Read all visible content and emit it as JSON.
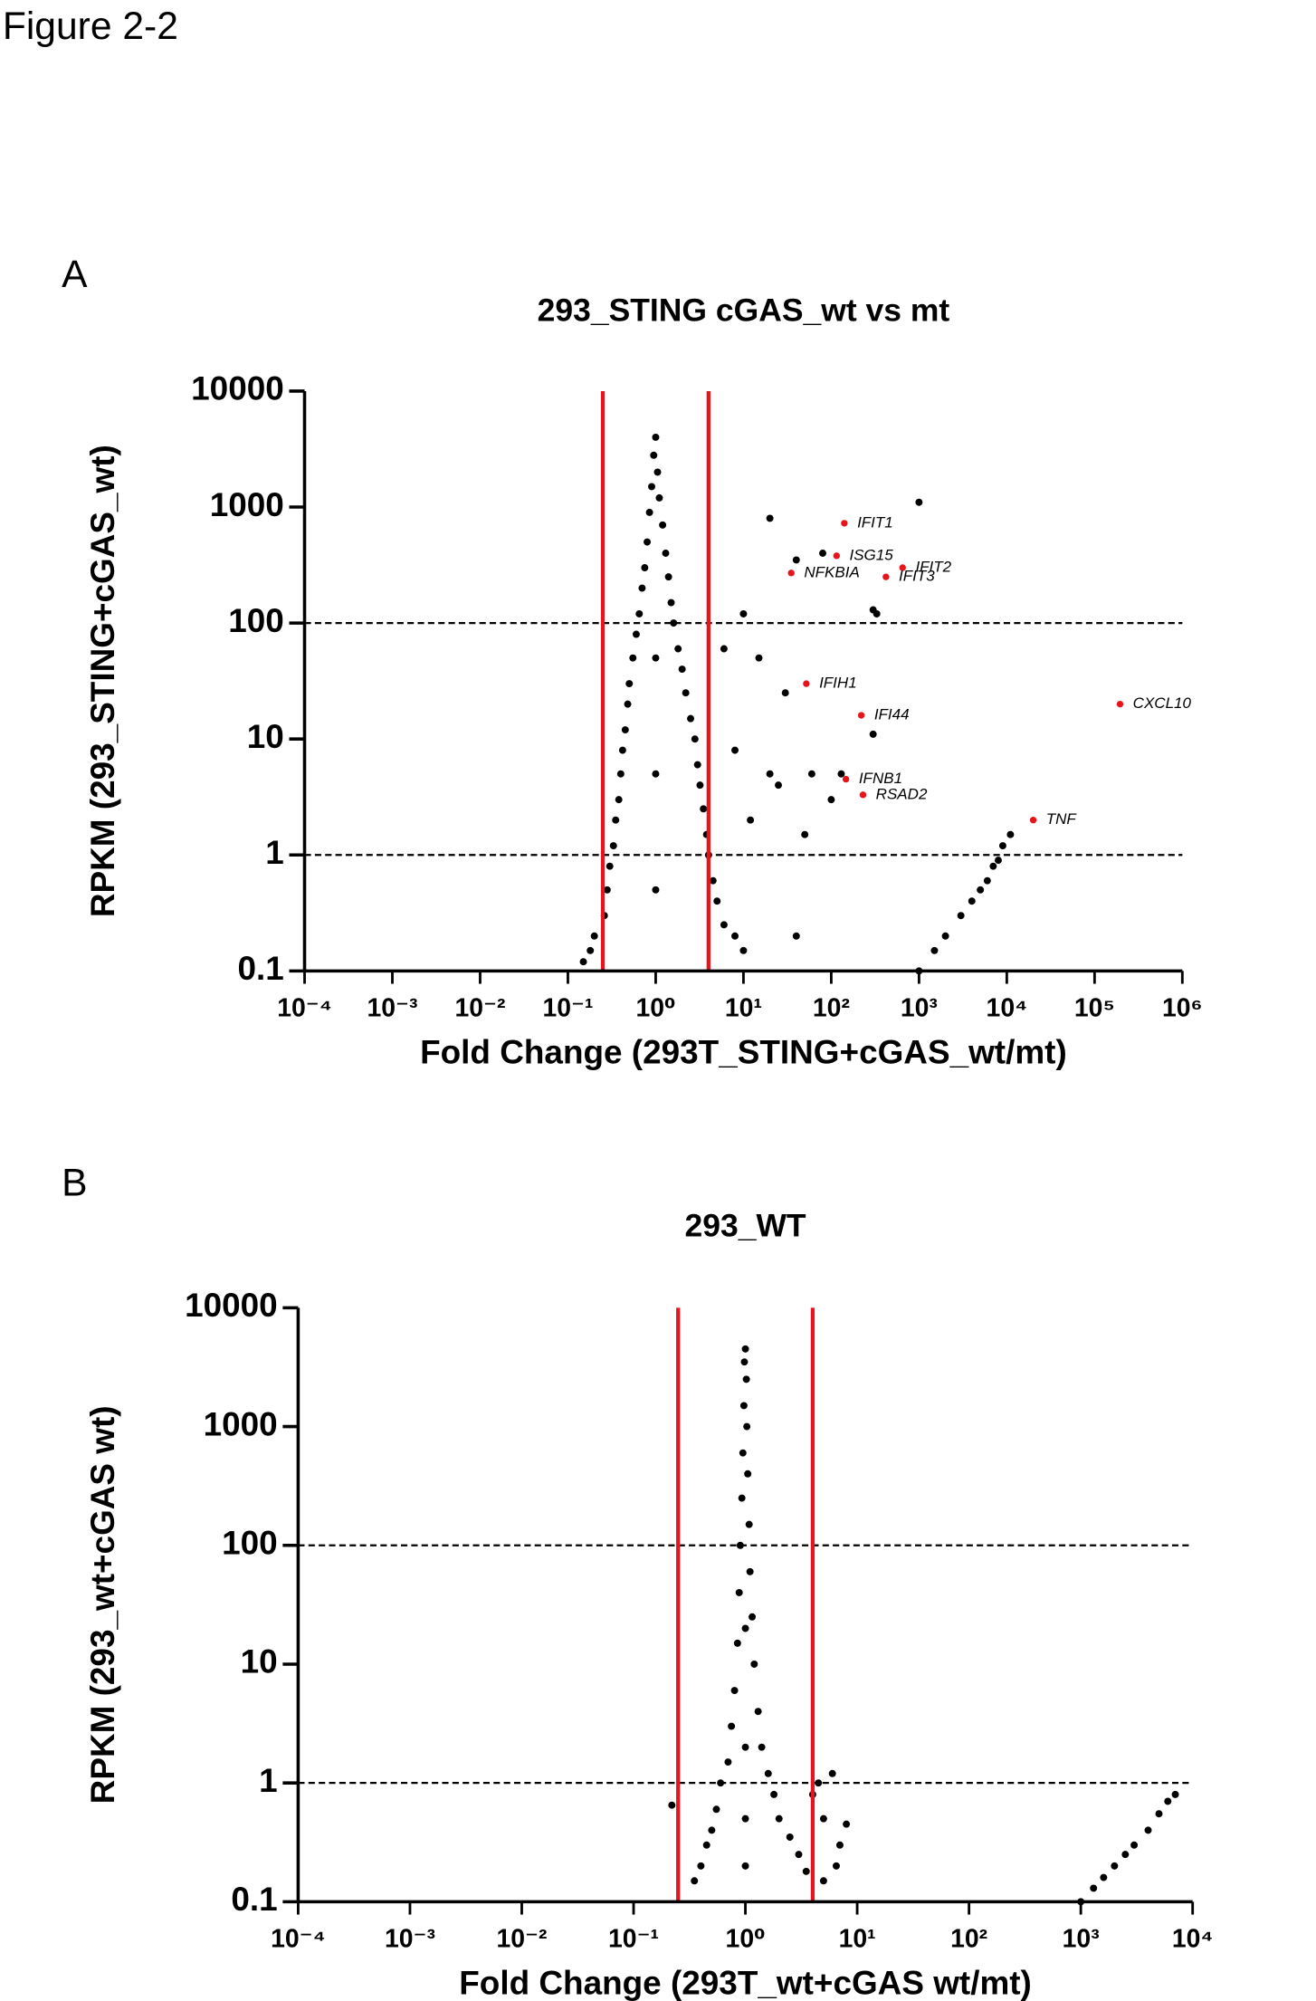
{
  "figure_title": "Figure 2-2",
  "chart_data": [
    {
      "panel": "A",
      "type": "scatter",
      "title": "293_STING cGAS_wt vs mt",
      "x_label": "Fold Change (293T_STING+cGAS_wt/mt)",
      "y_label": "RPKM (293_STING+cGAS_wt)",
      "log_x": true,
      "log_y": true,
      "xlim": [
        0.0001,
        1000000
      ],
      "ylim": [
        0.1,
        10000
      ],
      "xticks": [
        {
          "value": 0.0001,
          "label": "10⁻⁴"
        },
        {
          "value": 0.001,
          "label": "10⁻³"
        },
        {
          "value": 0.01,
          "label": "10⁻²"
        },
        {
          "value": 0.1,
          "label": "10⁻¹"
        },
        {
          "value": 1,
          "label": "10⁰"
        },
        {
          "value": 10,
          "label": "10¹"
        },
        {
          "value": 100,
          "label": "10²"
        },
        {
          "value": 1000,
          "label": "10³"
        },
        {
          "value": 10000,
          "label": "10⁴"
        },
        {
          "value": 100000,
          "label": "10⁵"
        },
        {
          "value": 1000000,
          "label": "10⁶"
        }
      ],
      "yticks": [
        0.1,
        1,
        10,
        100,
        1000,
        10000
      ],
      "vlines": {
        "values": [
          0.25,
          4
        ],
        "color": "#e8141b"
      },
      "hlines": {
        "values": [
          1,
          100
        ],
        "color": "#000000"
      },
      "series": [
        {
          "color": "#000000",
          "x": [
            1,
            0.95,
            1.05,
            0.9,
            1.1,
            0.85,
            1.2,
            0.8,
            1.3,
            0.75,
            1.4,
            0.7,
            1.5,
            0.65,
            1.6,
            0.6,
            1.8,
            0.55,
            2,
            0.5,
            2.2,
            0.48,
            2.5,
            0.45,
            2.8,
            0.42,
            3,
            0.4,
            3.2,
            0.38,
            3.5,
            0.35,
            3.8,
            0.33,
            4,
            0.3,
            4.5,
            0.28,
            5,
            0.26,
            6,
            0.2,
            8,
            0.18,
            10,
            0.15,
            1,
            1,
            1,
            1000,
            20,
            80,
            40,
            300,
            330,
            10,
            6,
            15,
            30,
            8,
            20,
            25,
            60,
            100,
            12,
            50,
            40,
            300,
            130,
            1000,
            1500,
            2000,
            3000,
            4000,
            5000,
            6000,
            7000,
            8000,
            9000,
            11000
          ],
          "values": [
            4000,
            2800,
            2000,
            1500,
            1200,
            900,
            700,
            500,
            400,
            300,
            250,
            200,
            150,
            120,
            100,
            80,
            60,
            50,
            40,
            30,
            25,
            20,
            15,
            12,
            10,
            8,
            6,
            5,
            4,
            3,
            2.5,
            2,
            1.5,
            1.2,
            1,
            0.8,
            0.6,
            0.5,
            0.4,
            0.3,
            0.25,
            0.2,
            0.2,
            0.15,
            0.15,
            0.12,
            0.5,
            50,
            5,
            1100,
            800,
            400,
            350,
            130,
            120,
            120,
            60,
            50,
            25,
            8,
            5,
            4,
            5,
            3,
            2,
            1.5,
            0.2,
            11,
            5,
            0.1,
            0.15,
            0.2,
            0.3,
            0.4,
            0.5,
            0.6,
            0.8,
            0.9,
            1.2,
            1.5
          ]
        },
        {
          "color": "#e8141b",
          "labels": [
            "IFIT1",
            "ISG15",
            "IFIT2",
            "NFKBIA",
            "IFIT3",
            "IFIH1",
            "IFI44",
            "CXCL10",
            "IFNB1",
            "RSAD2",
            "TNF"
          ],
          "x": [
            141,
            115,
            650,
            35,
            420,
            52,
            220,
            195000,
            147,
            230,
            20000
          ],
          "values": [
            725,
            380,
            300,
            270,
            250,
            30,
            16,
            20,
            4.5,
            3.3,
            2
          ]
        }
      ]
    },
    {
      "panel": "B",
      "type": "scatter",
      "title": "293_WT",
      "x_label": "Fold Change (293T_wt+cGAS wt/mt)",
      "y_label": "RPKM (293_wt+cGAS wt)",
      "log_x": true,
      "log_y": true,
      "xlim": [
        0.0001,
        10000
      ],
      "ylim": [
        0.1,
        10000
      ],
      "xticks": [
        {
          "value": 0.0001,
          "label": "10⁻⁴"
        },
        {
          "value": 0.001,
          "label": "10⁻³"
        },
        {
          "value": 0.01,
          "label": "10⁻²"
        },
        {
          "value": 0.1,
          "label": "10⁻¹"
        },
        {
          "value": 1,
          "label": "10⁰"
        },
        {
          "value": 10,
          "label": "10¹"
        },
        {
          "value": 100,
          "label": "10²"
        },
        {
          "value": 1000,
          "label": "10³"
        },
        {
          "value": 10000,
          "label": "10⁴"
        }
      ],
      "yticks": [
        0.1,
        1,
        10,
        100,
        1000,
        10000
      ],
      "vlines": {
        "values": [
          0.25,
          4
        ],
        "color": "#e8141b"
      },
      "hlines": {
        "values": [
          1,
          100
        ],
        "color": "#000000"
      },
      "series": [
        {
          "color": "#000000",
          "x": [
            1,
            0.98,
            1.02,
            0.97,
            1.03,
            0.95,
            1.05,
            0.93,
            1.08,
            0.9,
            1.1,
            0.88,
            1.15,
            0.85,
            1.2,
            0.8,
            1.3,
            0.75,
            1.4,
            0.7,
            1.6,
            0.6,
            1.8,
            0.55,
            2,
            0.5,
            2.5,
            0.45,
            3,
            0.4,
            3.5,
            0.35,
            1,
            1,
            1,
            1,
            0.22,
            4,
            5,
            6,
            7,
            8,
            5,
            6.5,
            4.5,
            1000,
            1300,
            1600,
            2000,
            2500,
            3000,
            4000,
            5000,
            6000,
            7000
          ],
          "values": [
            4500,
            3500,
            2500,
            1500,
            1000,
            600,
            400,
            250,
            150,
            100,
            60,
            40,
            25,
            15,
            10,
            6,
            4,
            3,
            2,
            1.5,
            1.2,
            1,
            0.8,
            0.6,
            0.5,
            0.4,
            0.35,
            0.3,
            0.25,
            0.2,
            0.18,
            0.15,
            0.5,
            0.2,
            2,
            20,
            0.65,
            0.8,
            0.5,
            1.2,
            0.3,
            0.45,
            0.15,
            0.2,
            1,
            0.1,
            0.13,
            0.16,
            0.2,
            0.25,
            0.3,
            0.4,
            0.55,
            0.7,
            0.8
          ]
        }
      ]
    }
  ]
}
